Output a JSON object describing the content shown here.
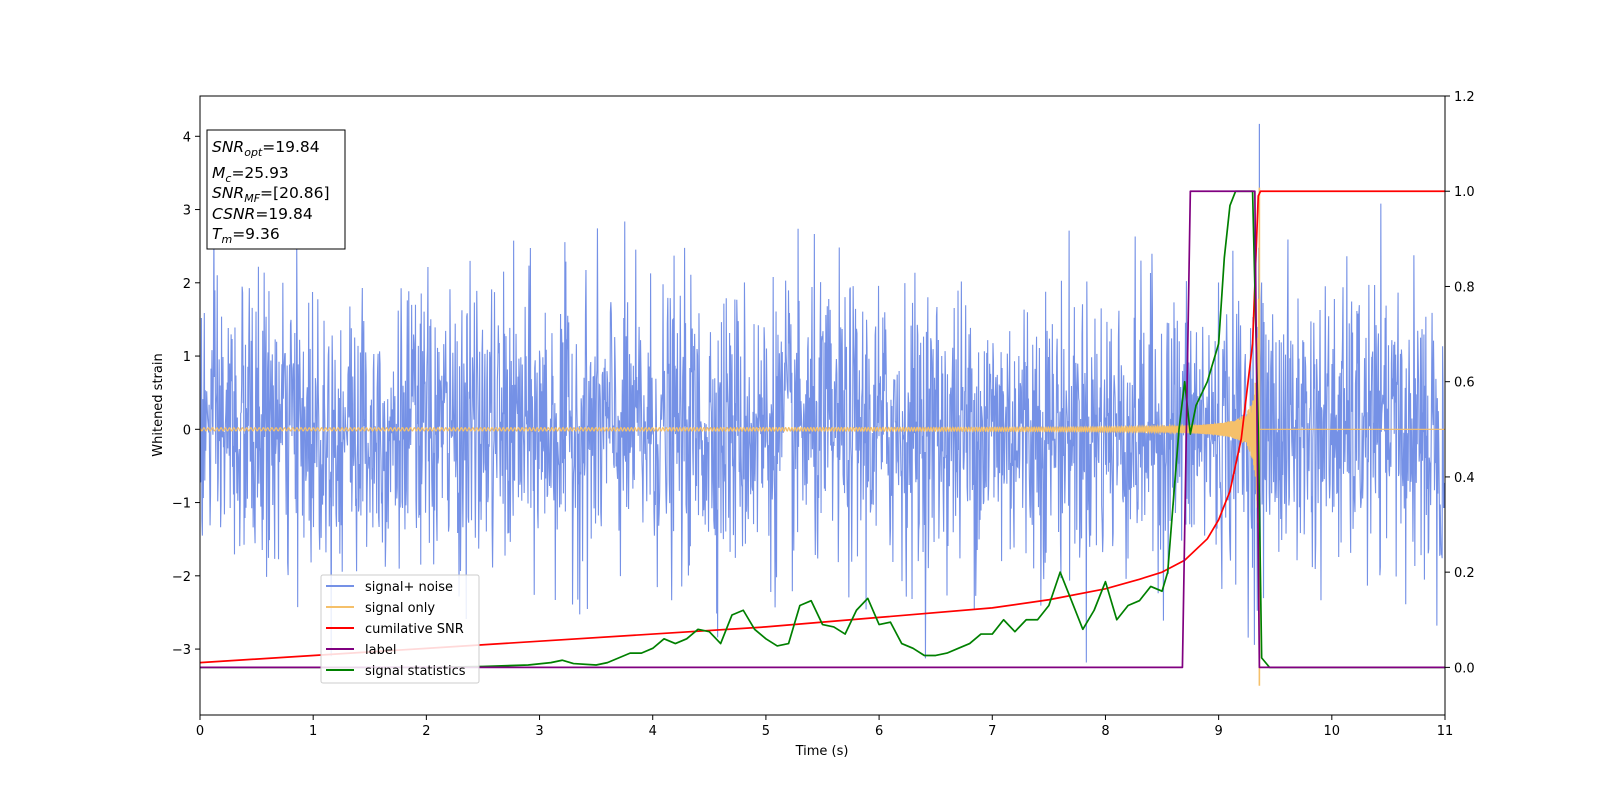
{
  "chart_data": {
    "type": "line",
    "xlabel": "Time (s)",
    "ylabel_left": "Whitened strain",
    "ylabel_right": "",
    "xlim": [
      0,
      11
    ],
    "ylim_left": [
      -3.9,
      4.55
    ],
    "ylim_right": [
      -0.1,
      1.2
    ],
    "xticks": [
      "0",
      "1",
      "2",
      "3",
      "4",
      "5",
      "6",
      "7",
      "8",
      "9",
      "10",
      "11"
    ],
    "yticks_left": [
      "4",
      "3",
      "2",
      "1",
      "0",
      "−1",
      "−2",
      "−3"
    ],
    "yticks_right": [
      "1.2",
      "1.0",
      "0.8",
      "0.6",
      "0.4",
      "0.2",
      "0.0"
    ],
    "grid": false,
    "legend_position": "lower-left",
    "info_box": {
      "snr_opt": {
        "main": "SNR",
        "sub": "opt",
        "value": "=19.84"
      },
      "mc": {
        "main": "M",
        "sub": "c",
        "value": "=25.93"
      },
      "snr_mf": {
        "main": "SNR",
        "sub": "MF",
        "value": "=[20.86]"
      },
      "csnr": {
        "main": "CSNR",
        "value": "=19.84"
      },
      "tm": {
        "main": "T",
        "sub": "m",
        "value": "=9.36"
      }
    },
    "series": [
      {
        "name": "signal+ noise",
        "axis": "left",
        "color": "#7591e6",
        "description_values": {
          "std": 0.95,
          "min": -3.5,
          "max": 4.17,
          "t_max": 9.36
        }
      },
      {
        "name": "signal only",
        "axis": "left",
        "color": "#f5c06a",
        "chirp": {
          "start_amp": 0.02,
          "merger_time": 9.36,
          "peak_amp": 3.3,
          "post_merger": 0
        }
      },
      {
        "name": "cumilative SNR",
        "axis": "right",
        "color": "#ff0000",
        "x": [
          0,
          1,
          2,
          3,
          4,
          5,
          6,
          7,
          7.5,
          8,
          8.3,
          8.5,
          8.7,
          8.9,
          9.0,
          9.1,
          9.2,
          9.3,
          9.35,
          9.37,
          11
        ],
        "y": [
          0.01,
          0.025,
          0.04,
          0.055,
          0.07,
          0.085,
          0.105,
          0.125,
          0.142,
          0.165,
          0.185,
          0.2,
          0.225,
          0.27,
          0.31,
          0.37,
          0.48,
          0.68,
          0.99,
          1.0,
          1.0
        ]
      },
      {
        "name": "label",
        "axis": "right",
        "color": "#800080",
        "x": [
          0,
          8.68,
          8.75,
          9.32,
          9.36,
          11
        ],
        "y": [
          0,
          0,
          1,
          1,
          0,
          0
        ]
      },
      {
        "name": "signal statistics",
        "axis": "right",
        "color": "#008000",
        "x": [
          0,
          2.0,
          2.5,
          2.9,
          3.1,
          3.2,
          3.3,
          3.5,
          3.6,
          3.7,
          3.8,
          3.9,
          4.0,
          4.1,
          4.2,
          4.3,
          4.4,
          4.5,
          4.6,
          4.7,
          4.8,
          4.9,
          5.0,
          5.1,
          5.2,
          5.3,
          5.4,
          5.5,
          5.6,
          5.7,
          5.8,
          5.9,
          6.0,
          6.1,
          6.2,
          6.3,
          6.4,
          6.5,
          6.6,
          6.7,
          6.8,
          6.9,
          7.0,
          7.1,
          7.2,
          7.3,
          7.4,
          7.5,
          7.6,
          7.7,
          7.8,
          7.9,
          8.0,
          8.1,
          8.2,
          8.3,
          8.4,
          8.5,
          8.55,
          8.6,
          8.65,
          8.7,
          8.75,
          8.8,
          8.9,
          9.0,
          9.05,
          9.1,
          9.15,
          9.2,
          9.25,
          9.3,
          9.35,
          9.38,
          9.45,
          11
        ],
        "y": [
          0,
          0,
          0.002,
          0.005,
          0.01,
          0.015,
          0.008,
          0.005,
          0.01,
          0.02,
          0.03,
          0.03,
          0.04,
          0.06,
          0.05,
          0.06,
          0.08,
          0.075,
          0.05,
          0.11,
          0.12,
          0.08,
          0.06,
          0.045,
          0.05,
          0.13,
          0.14,
          0.09,
          0.085,
          0.07,
          0.12,
          0.145,
          0.09,
          0.095,
          0.05,
          0.04,
          0.025,
          0.025,
          0.03,
          0.04,
          0.05,
          0.07,
          0.07,
          0.1,
          0.075,
          0.1,
          0.1,
          0.13,
          0.2,
          0.14,
          0.08,
          0.12,
          0.18,
          0.1,
          0.13,
          0.14,
          0.17,
          0.16,
          0.2,
          0.35,
          0.5,
          0.6,
          0.49,
          0.55,
          0.6,
          0.68,
          0.86,
          0.97,
          1.0,
          1.0,
          1.0,
          1.0,
          0.5,
          0.02,
          0.0,
          0.0
        ]
      }
    ]
  }
}
